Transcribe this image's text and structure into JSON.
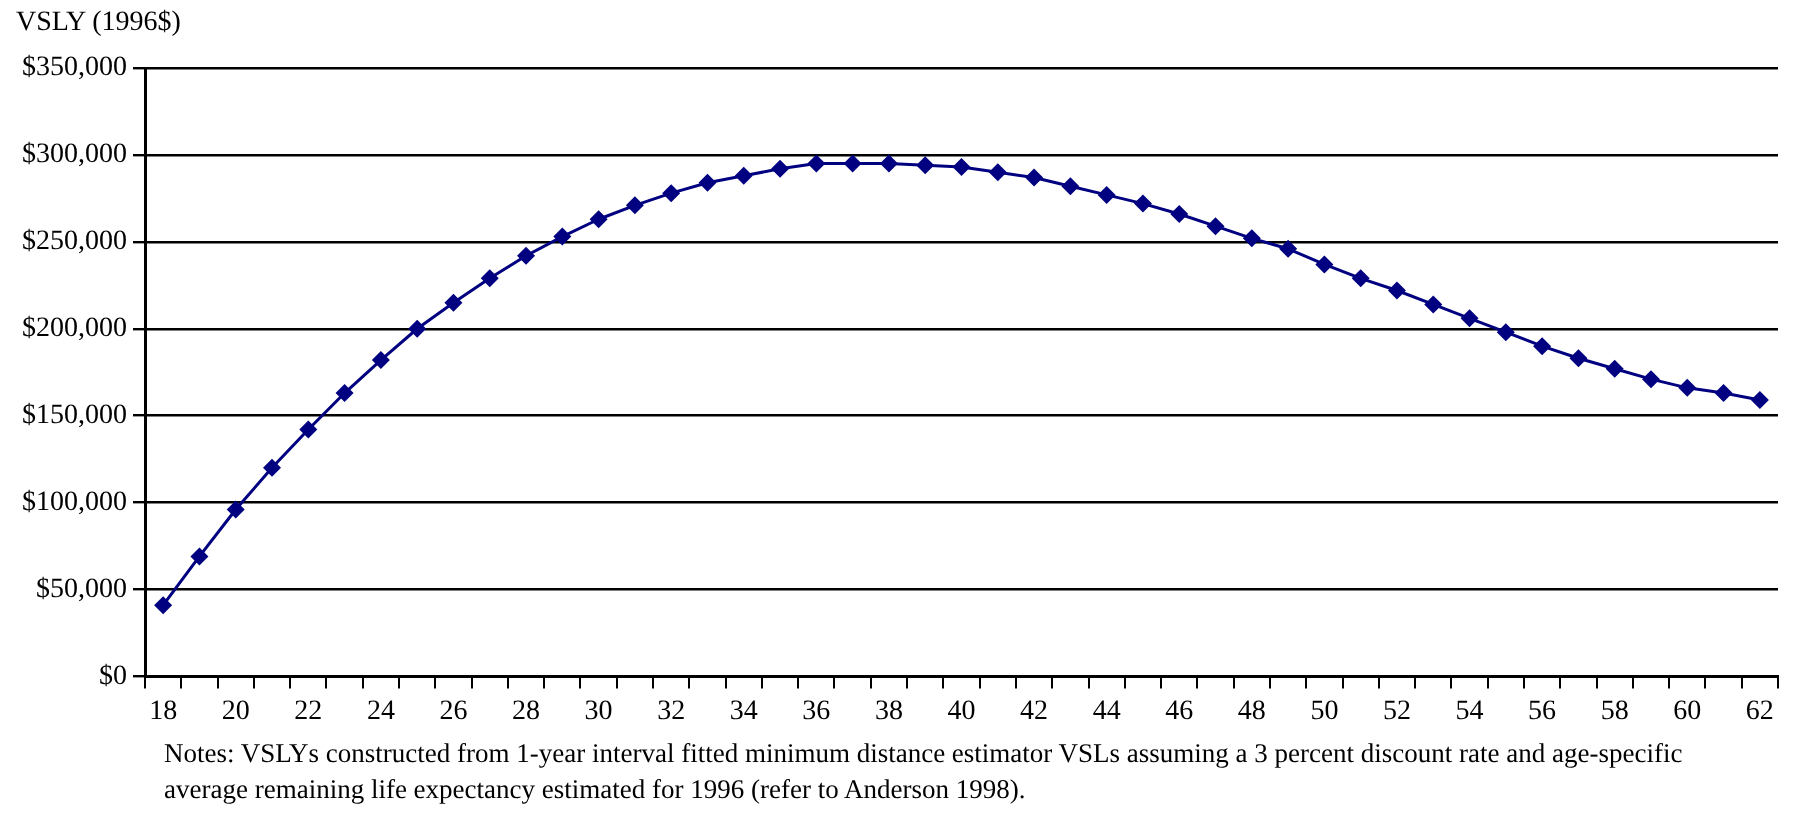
{
  "chart_data": {
    "type": "line",
    "ylabel": "VSLY (1996$)",
    "categories": [
      "18",
      null,
      "20",
      null,
      "22",
      null,
      "24",
      null,
      "26",
      null,
      "28",
      null,
      "30",
      null,
      "32",
      null,
      "34",
      null,
      "36",
      null,
      "38",
      null,
      "40",
      null,
      "42",
      null,
      "44",
      null,
      "46",
      null,
      "48",
      null,
      "50",
      null,
      "52",
      null,
      "54",
      null,
      "56",
      null,
      "58",
      null,
      "60",
      null,
      "62"
    ],
    "series": [
      {
        "color": "#000080",
        "values": [
          41000,
          69000,
          96000,
          120000,
          142000,
          163000,
          182000,
          200000,
          215000,
          229000,
          242000,
          253000,
          263000,
          271000,
          278000,
          284000,
          288000,
          292000,
          295000,
          295000,
          295000,
          294000,
          293000,
          290000,
          287000,
          282000,
          277000,
          272000,
          266000,
          259000,
          252000,
          246000,
          237000,
          229000,
          222000,
          214000,
          206000,
          198000,
          190000,
          183000,
          177000,
          171000,
          166000,
          163000,
          159000
        ]
      }
    ],
    "ylim": [
      0,
      350000
    ],
    "yticks": [
      {
        "value": 0,
        "label": "$0"
      },
      {
        "value": 50000,
        "label": "$50,000"
      },
      {
        "value": 100000,
        "label": "$100,000"
      },
      {
        "value": 150000,
        "label": "$150,000"
      },
      {
        "value": 200000,
        "label": "$200,000"
      },
      {
        "value": 250000,
        "label": "$250,000"
      },
      {
        "value": 300000,
        "label": "$300,000"
      },
      {
        "value": 350000,
        "label": "$350,000"
      }
    ],
    "grid": "y",
    "legend": false,
    "marker": "diamond",
    "line_style": "solid",
    "annotations": [
      "Notes: VSLYs constructed from 1-year interval fitted minimum distance estimator VSLs assuming a 3 percent discount rate and age-specific average remaining life expectancy estimated for 1996 (refer to Anderson 1998)."
    ]
  }
}
